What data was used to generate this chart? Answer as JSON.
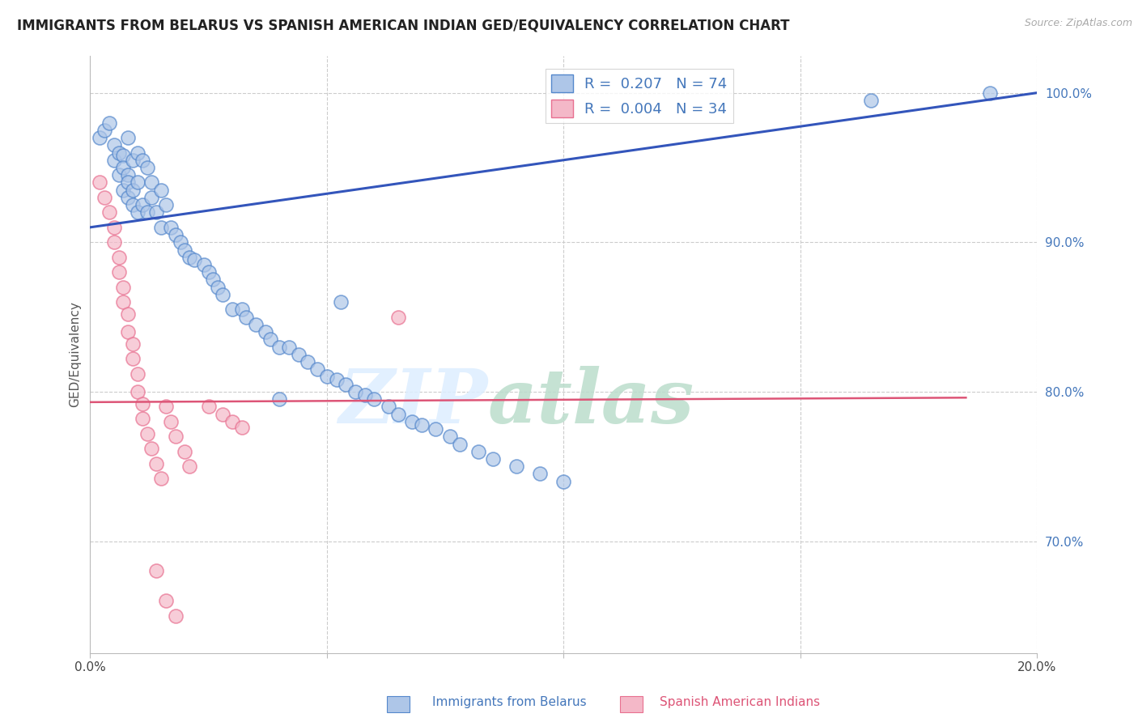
{
  "title": "IMMIGRANTS FROM BELARUS VS SPANISH AMERICAN INDIAN GED/EQUIVALENCY CORRELATION CHART",
  "source": "Source: ZipAtlas.com",
  "ylabel": "GED/Equivalency",
  "xlim": [
    0.0,
    0.2
  ],
  "ylim": [
    0.625,
    1.025
  ],
  "x_ticks": [
    0.0,
    0.05,
    0.1,
    0.15,
    0.2
  ],
  "x_tick_labels": [
    "0.0%",
    "",
    "",
    "",
    "20.0%"
  ],
  "y_ticks": [
    0.7,
    0.8,
    0.9,
    1.0
  ],
  "y_tick_labels": [
    "70.0%",
    "80.0%",
    "90.0%",
    "100.0%"
  ],
  "legend_r1": "R =  0.207",
  "legend_n1": "N = 74",
  "legend_r2": "R =  0.004",
  "legend_n2": "N = 34",
  "blue_color": "#AEC6E8",
  "pink_color": "#F4B8C8",
  "blue_edge": "#5588CC",
  "pink_edge": "#E87090",
  "line_blue": "#3355BB",
  "line_pink": "#DD5577",
  "blue_scatter_x": [
    0.002,
    0.003,
    0.004,
    0.005,
    0.005,
    0.006,
    0.006,
    0.007,
    0.007,
    0.007,
    0.008,
    0.008,
    0.008,
    0.008,
    0.009,
    0.009,
    0.009,
    0.01,
    0.01,
    0.01,
    0.011,
    0.011,
    0.012,
    0.012,
    0.013,
    0.013,
    0.014,
    0.015,
    0.015,
    0.016,
    0.017,
    0.018,
    0.019,
    0.02,
    0.021,
    0.022,
    0.024,
    0.025,
    0.026,
    0.027,
    0.028,
    0.03,
    0.032,
    0.033,
    0.035,
    0.037,
    0.038,
    0.04,
    0.042,
    0.044,
    0.046,
    0.048,
    0.05,
    0.052,
    0.054,
    0.056,
    0.058,
    0.06,
    0.063,
    0.065,
    0.068,
    0.07,
    0.073,
    0.076,
    0.078,
    0.082,
    0.085,
    0.09,
    0.095,
    0.1,
    0.053,
    0.04,
    0.165,
    0.19
  ],
  "blue_scatter_y": [
    0.97,
    0.975,
    0.98,
    0.965,
    0.955,
    0.945,
    0.96,
    0.958,
    0.95,
    0.935,
    0.97,
    0.945,
    0.94,
    0.93,
    0.955,
    0.935,
    0.925,
    0.96,
    0.94,
    0.92,
    0.955,
    0.925,
    0.95,
    0.92,
    0.94,
    0.93,
    0.92,
    0.935,
    0.91,
    0.925,
    0.91,
    0.905,
    0.9,
    0.895,
    0.89,
    0.888,
    0.885,
    0.88,
    0.875,
    0.87,
    0.865,
    0.855,
    0.855,
    0.85,
    0.845,
    0.84,
    0.835,
    0.83,
    0.83,
    0.825,
    0.82,
    0.815,
    0.81,
    0.808,
    0.805,
    0.8,
    0.798,
    0.795,
    0.79,
    0.785,
    0.78,
    0.778,
    0.775,
    0.77,
    0.765,
    0.76,
    0.755,
    0.75,
    0.745,
    0.74,
    0.86,
    0.795,
    0.995,
    1.0
  ],
  "pink_scatter_x": [
    0.002,
    0.003,
    0.004,
    0.005,
    0.005,
    0.006,
    0.006,
    0.007,
    0.007,
    0.008,
    0.008,
    0.009,
    0.009,
    0.01,
    0.01,
    0.011,
    0.011,
    0.012,
    0.013,
    0.014,
    0.015,
    0.016,
    0.017,
    0.018,
    0.02,
    0.021,
    0.025,
    0.028,
    0.03,
    0.032,
    0.065,
    0.014,
    0.016,
    0.018
  ],
  "pink_scatter_y": [
    0.94,
    0.93,
    0.92,
    0.91,
    0.9,
    0.89,
    0.88,
    0.87,
    0.86,
    0.852,
    0.84,
    0.832,
    0.822,
    0.812,
    0.8,
    0.792,
    0.782,
    0.772,
    0.762,
    0.752,
    0.742,
    0.79,
    0.78,
    0.77,
    0.76,
    0.75,
    0.79,
    0.785,
    0.78,
    0.776,
    0.85,
    0.68,
    0.66,
    0.65
  ],
  "blue_line_x": [
    0.0,
    0.2
  ],
  "blue_line_y": [
    0.91,
    1.0
  ],
  "pink_line_x": [
    0.0,
    0.185
  ],
  "pink_line_y": [
    0.793,
    0.796
  ],
  "watermark_line1": "ZIP",
  "watermark_line2": "atlas",
  "background_color": "#FFFFFF",
  "grid_color": "#CCCCCC"
}
